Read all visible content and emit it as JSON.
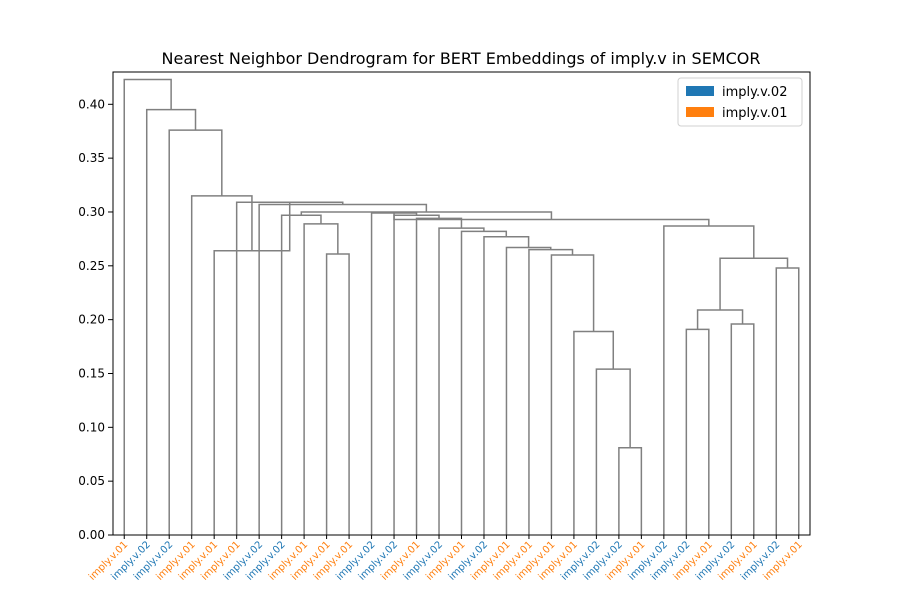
{
  "chart_data": {
    "type": "dendrogram",
    "title": "Nearest Neighbor Dendrogram for BERT Embeddings of imply.v in SEMCOR",
    "ylim": [
      0,
      0.43
    ],
    "yticks": [
      "0.00",
      "0.05",
      "0.10",
      "0.15",
      "0.20",
      "0.25",
      "0.30",
      "0.35",
      "0.40"
    ],
    "legend": {
      "placement": "top-right",
      "entries": [
        {
          "label": "imply.v.02",
          "color": "#1f77b4"
        },
        {
          "label": "imply.v.01",
          "color": "#ff7f0e"
        }
      ]
    },
    "sense_colors": {
      "imply.v.02": "#1f77b4",
      "imply.v.01": "#ff7f0e"
    },
    "leaves": [
      "imply.v.01",
      "imply.v.02",
      "imply.v.02",
      "imply.v.01",
      "imply.v.01",
      "imply.v.01",
      "imply.v.02",
      "imply.v.02",
      "imply.v.01",
      "imply.v.02",
      "imply.v.01",
      "imply.v.02",
      "imply.v.01",
      "imply.v.01",
      "imply.v.01",
      "imply.v.01",
      "imply.v.02",
      "imply.v.02",
      "imply.v.01",
      "imply.v.02",
      "imply.v.02",
      "imply.v.01",
      "imply.v.02",
      "imply.v.01",
      "imply.v.02",
      "imply.v.01"
    ],
    "merges": [
      {
        "a": "L17",
        "b": "L18",
        "h": 0.081
      },
      {
        "a": "L16",
        "b": "M0",
        "h": 0.154
      },
      {
        "a": "L15",
        "b": "M1",
        "h": 0.189
      },
      {
        "a": "L14",
        "b": "M2",
        "h": 0.26
      },
      {
        "a": "L13",
        "b": "M3",
        "h": 0.265
      },
      {
        "a": "L12",
        "b": "M4",
        "h": 0.267
      },
      {
        "a": "L11",
        "b": "M5",
        "h": 0.277
      },
      {
        "a": "L10",
        "b": "M6",
        "h": 0.282
      },
      {
        "a": "L9",
        "b": "M7",
        "h": 0.285
      },
      {
        "a": "L8",
        "b": "M8",
        "h": 0.294
      },
      {
        "a": "L7",
        "b": "M9",
        "h": 0.297
      },
      {
        "a": "L6",
        "b": "M10",
        "h": 0.299
      },
      {
        "a": "L20",
        "b": "L21",
        "h": 0.191
      },
      {
        "a": "L22",
        "b": "L23",
        "h": 0.196
      },
      {
        "a": "M12",
        "b": "M13",
        "h": 0.209
      },
      {
        "a": "L24",
        "b": "L25",
        "h": 0.248
      },
      {
        "a": "M14",
        "b": "M15",
        "h": 0.257
      },
      {
        "a": "L19",
        "b": "M16",
        "h": 0.287
      },
      {
        "a": "M11",
        "b": "M17",
        "h": 0.293
      },
      {
        "a": "L4",
        "b": "L5",
        "h": 0.261
      },
      {
        "a": "L3",
        "b": "M19",
        "h": 0.289
      },
      {
        "a": "L2",
        "b": "M20",
        "h": 0.297
      },
      {
        "a": "M21",
        "b": "M18",
        "h": 0.3
      },
      {
        "a": "L1",
        "b": "M22",
        "h": 0.307
      },
      {
        "a": "L0",
        "b": "M23",
        "h": 0.309
      }
    ],
    "outer_leaves": [
      "imply.v.02",
      "imply.v.02",
      "imply.v.01",
      "imply.v.01"
    ],
    "outer_merges": [
      {
        "a": "O3",
        "b": "M24",
        "h": 0.264
      },
      {
        "a": "O2",
        "b": "N0",
        "h": 0.315
      },
      {
        "a": "O1",
        "b": "N1",
        "h": 0.376
      },
      {
        "a": "O0",
        "b": "N2",
        "h": 0.395
      },
      {
        "a": "OX",
        "b": "N3",
        "h": 0.423
      }
    ]
  }
}
